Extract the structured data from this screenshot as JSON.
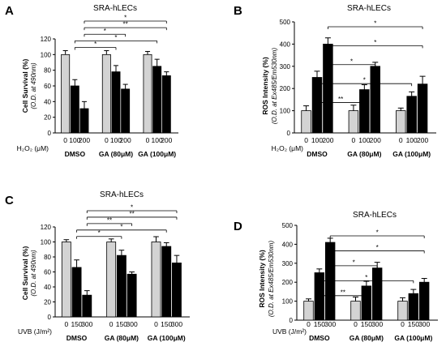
{
  "chart_data": [
    {
      "type": "bar",
      "panel": "A",
      "title": "SRA-hLECs",
      "ylabel": "Cell Survival (%)",
      "ylabel2": "(O.D. at 490nm)",
      "ylim": [
        0,
        120
      ],
      "yticks": [
        0,
        20,
        40,
        60,
        80,
        100,
        120
      ],
      "treatment_label": "H₂O₂ (μM)",
      "doses": [
        "0",
        "100",
        "200"
      ],
      "groups": [
        "DMSO",
        "GA (80μM)",
        "GA (100μM)"
      ],
      "values": [
        [
          100,
          60,
          31
        ],
        [
          100,
          78,
          56
        ],
        [
          100,
          85,
          73
        ]
      ],
      "errors": [
        [
          5,
          8,
          9
        ],
        [
          5,
          8,
          6
        ],
        [
          4,
          9,
          5
        ]
      ],
      "colors": [
        "#d3d3d3",
        "#000000",
        "#000000"
      ],
      "significance": [
        {
          "from": [
            0,
            1
          ],
          "to": [
            1,
            1
          ],
          "label": "*"
        },
        {
          "from": [
            0,
            1
          ],
          "to": [
            2,
            1
          ],
          "label": "*"
        },
        {
          "from": [
            0,
            2
          ],
          "to": [
            1,
            2
          ],
          "label": "*"
        },
        {
          "from": [
            0,
            2
          ],
          "to": [
            2,
            2
          ],
          "label": "**"
        },
        {
          "from": [
            0,
            2
          ],
          "to": [
            2,
            2
          ],
          "label": "*"
        }
      ]
    },
    {
      "type": "bar",
      "panel": "B",
      "title": "SRA-hLECs",
      "ylabel": "ROS Intensity (%)",
      "ylabel2": "(O.D. at Ex485/Em530nm)",
      "ylim": [
        0,
        500
      ],
      "yticks": [
        0,
        100,
        200,
        300,
        400,
        500
      ],
      "treatment_label": "H₂O₂ (μM)",
      "doses": [
        "0",
        "100",
        "200"
      ],
      "groups": [
        "DMSO",
        "GA (80μM)",
        "GA (100μM)"
      ],
      "values": [
        [
          100,
          250,
          400
        ],
        [
          100,
          195,
          300
        ],
        [
          100,
          165,
          220
        ]
      ],
      "errors": [
        [
          22,
          28,
          28
        ],
        [
          25,
          22,
          18
        ],
        [
          12,
          20,
          35
        ]
      ],
      "colors": [
        "#d3d3d3",
        "#000000",
        "#000000"
      ],
      "significance": [
        {
          "from": [
            0,
            1
          ],
          "to": [
            1,
            1
          ],
          "label": "**"
        },
        {
          "from": [
            0,
            1
          ],
          "to": [
            2,
            1
          ],
          "label": "*"
        },
        {
          "from": [
            0,
            2
          ],
          "to": [
            1,
            2
          ],
          "label": "*"
        },
        {
          "from": [
            0,
            2
          ],
          "to": [
            2,
            2
          ],
          "label": "*"
        },
        {
          "from": [
            0,
            2
          ],
          "to": [
            2,
            2
          ],
          "label": "*"
        }
      ]
    },
    {
      "type": "bar",
      "panel": "C",
      "title": "SRA-hLECs",
      "ylabel": "Cell Survival (%)",
      "ylabel2": "(O.D. at 490nm)",
      "ylim": [
        0,
        120
      ],
      "yticks": [
        0,
        20,
        40,
        60,
        80,
        100,
        120
      ],
      "treatment_label": "UVB (J/m²)",
      "doses": [
        "0",
        "150",
        "300"
      ],
      "groups": [
        "DMSO",
        "GA (80μM)",
        "GA (100μM)"
      ],
      "values": [
        [
          100,
          66,
          29
        ],
        [
          100,
          82,
          57
        ],
        [
          100,
          94,
          72
        ]
      ],
      "errors": [
        [
          3,
          10,
          6
        ],
        [
          4,
          7,
          3
        ],
        [
          7,
          5,
          10
        ]
      ],
      "colors": [
        "#d3d3d3",
        "#000000",
        "#000000"
      ],
      "significance": [
        {
          "from": [
            0,
            1
          ],
          "to": [
            1,
            1
          ],
          "label": "*"
        },
        {
          "from": [
            0,
            1
          ],
          "to": [
            2,
            1
          ],
          "label": "*"
        },
        {
          "from": [
            0,
            2
          ],
          "to": [
            1,
            2
          ],
          "label": "**"
        },
        {
          "from": [
            0,
            2
          ],
          "to": [
            2,
            2
          ],
          "label": "**"
        },
        {
          "from": [
            0,
            2
          ],
          "to": [
            2,
            2
          ],
          "label": "*"
        }
      ]
    },
    {
      "type": "bar",
      "panel": "D",
      "title": "SRA-hLECs",
      "ylabel": "ROS Intensity (%)",
      "ylabel2": "(O.D. at Ex485/Em530nm)",
      "ylim": [
        0,
        500
      ],
      "yticks": [
        0,
        100,
        200,
        300,
        400,
        500
      ],
      "treatment_label": "UVB (J/m²)",
      "doses": [
        "0",
        "150",
        "300"
      ],
      "groups": [
        "DMSO",
        "GA (80μM)",
        "GA (100μM)"
      ],
      "values": [
        [
          100,
          250,
          410
        ],
        [
          100,
          180,
          275
        ],
        [
          100,
          140,
          200
        ]
      ],
      "errors": [
        [
          12,
          20,
          22
        ],
        [
          22,
          25,
          30
        ],
        [
          18,
          22,
          20
        ]
      ],
      "colors": [
        "#d3d3d3",
        "#000000",
        "#000000"
      ],
      "significance": [
        {
          "from": [
            0,
            1
          ],
          "to": [
            1,
            1
          ],
          "label": "**"
        },
        {
          "from": [
            0,
            1
          ],
          "to": [
            2,
            1
          ],
          "label": "*"
        },
        {
          "from": [
            0,
            2
          ],
          "to": [
            1,
            2
          ],
          "label": "*"
        },
        {
          "from": [
            0,
            2
          ],
          "to": [
            2,
            2
          ],
          "label": "*"
        },
        {
          "from": [
            0,
            2
          ],
          "to": [
            2,
            2
          ],
          "label": "*"
        }
      ]
    }
  ]
}
